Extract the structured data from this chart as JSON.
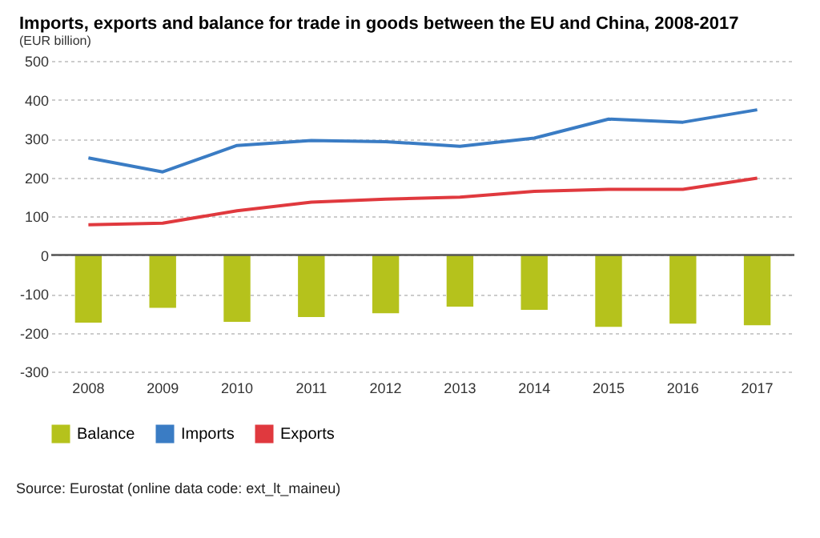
{
  "chart_data": {
    "type": "bar",
    "title": "Imports, exports and balance for trade in goods between the EU and China, 2008-2017",
    "subtitle": "(EUR billion)",
    "categories": [
      "2008",
      "2009",
      "2010",
      "2011",
      "2012",
      "2013",
      "2014",
      "2015",
      "2016",
      "2017"
    ],
    "series": [
      {
        "name": "Balance",
        "color": "#b5c21c",
        "values": [
          -174,
          -136,
          -172,
          -160,
          -150,
          -133,
          -141,
          -185,
          -177,
          -181
        ]
      },
      {
        "name": "Imports",
        "type": "line",
        "color": "#3a7cc4",
        "values": [
          250,
          214,
          282,
          295,
          292,
          280,
          301,
          350,
          342,
          374
        ]
      },
      {
        "name": "Exports",
        "type": "line",
        "color": "#e0393e",
        "values": [
          78,
          82,
          114,
          136,
          144,
          149,
          164,
          169,
          169,
          198
        ]
      }
    ],
    "ylim": [
      -300,
      500
    ],
    "yticks": [
      -300,
      -200,
      -100,
      0,
      100,
      200,
      300,
      400,
      500
    ],
    "ref_lines": [
      {
        "axis": "y",
        "value": 0,
        "color": "#555555"
      }
    ],
    "grid": "y",
    "legend": "bottom",
    "annotations": [
      "Source: Eurostat (online data code: ext_lt_maineu)"
    ]
  }
}
